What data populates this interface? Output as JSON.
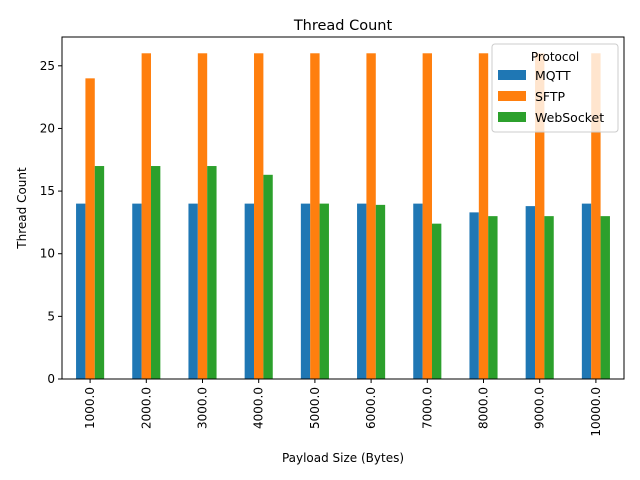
{
  "chart_data": {
    "type": "bar",
    "title": "Thread Count",
    "xlabel": "Payload Size (Bytes)",
    "ylabel": "Thread Count",
    "categories": [
      "1000.0",
      "2000.0",
      "3000.0",
      "4000.0",
      "5000.0",
      "6000.0",
      "7000.0",
      "8000.0",
      "9000.0",
      "10000.0"
    ],
    "ylim": [
      0,
      27.3
    ],
    "yticks": [
      0,
      5,
      10,
      15,
      20,
      25
    ],
    "grid": false,
    "legend": {
      "title": "Protocol",
      "placement": "top-right"
    },
    "series": [
      {
        "name": "MQTT",
        "color": "#1f77b4",
        "values": [
          14,
          14,
          14,
          14,
          14,
          14,
          14,
          13.3,
          13.8,
          14
        ]
      },
      {
        "name": "SFTP",
        "color": "#ff7f0e",
        "values": [
          24,
          26,
          26,
          26,
          26,
          26,
          26,
          26,
          26,
          26
        ]
      },
      {
        "name": "WebSocket",
        "color": "#2ca02c",
        "values": [
          17,
          17,
          17,
          16.3,
          14,
          13.9,
          12.4,
          13,
          13,
          13
        ]
      }
    ]
  }
}
